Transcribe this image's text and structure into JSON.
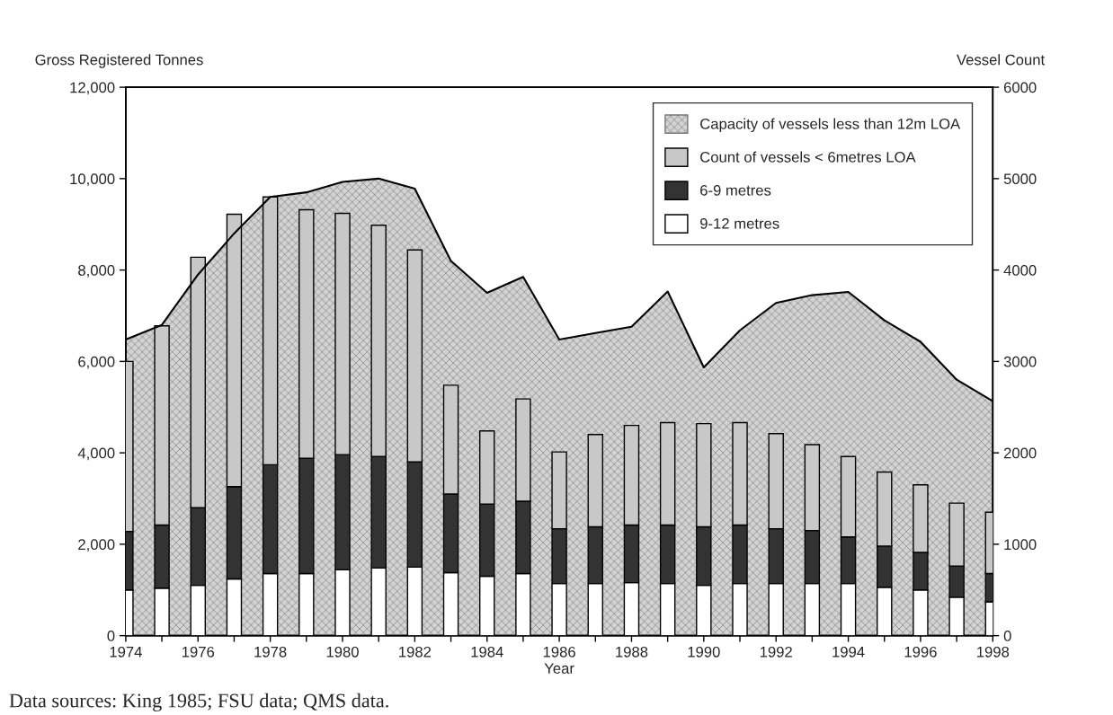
{
  "chart_data": {
    "type": "bar",
    "ylabel": "Gross Registered Tonnes",
    "y2label": "Vessel Count",
    "xlabel": "Year",
    "x": [
      1974,
      1975,
      1976,
      1977,
      1978,
      1979,
      1980,
      1981,
      1982,
      1983,
      1984,
      1985,
      1986,
      1987,
      1988,
      1989,
      1990,
      1991,
      1992,
      1993,
      1994,
      1995,
      1996,
      1997,
      1998
    ],
    "series": [
      {
        "name": "Capacity of vessels less than 12m LOA",
        "type": "area",
        "axis": "y",
        "color": "#d4d4d4",
        "values": [
          6480,
          6800,
          7900,
          8800,
          9600,
          9700,
          9930,
          10000,
          9780,
          8200,
          7500,
          7850,
          6480,
          6620,
          6760,
          7530,
          5870,
          6680,
          7280,
          7450,
          7520,
          6900,
          6430,
          5600,
          5130
        ]
      },
      {
        "name": "9-12 metres",
        "axis": "y2",
        "color": "#ffffff",
        "values": [
          500,
          520,
          550,
          620,
          680,
          680,
          720,
          740,
          750,
          690,
          650,
          680,
          570,
          570,
          580,
          570,
          550,
          570,
          570,
          570,
          570,
          530,
          500,
          420,
          370
        ]
      },
      {
        "name": "6-9 metres",
        "axis": "y2",
        "color": "#333333",
        "values": [
          640,
          690,
          850,
          1010,
          1190,
          1260,
          1260,
          1220,
          1150,
          860,
          790,
          790,
          600,
          620,
          630,
          640,
          640,
          640,
          600,
          580,
          510,
          450,
          410,
          340,
          310
        ]
      },
      {
        "name": "Count of vessels < 6metres LOA",
        "axis": "y2",
        "color": "#c8c8c8",
        "values": [
          1860,
          2180,
          2740,
          2980,
          2930,
          2720,
          2640,
          2530,
          2320,
          1190,
          800,
          1120,
          840,
          1010,
          1090,
          1120,
          1130,
          1120,
          1040,
          940,
          880,
          810,
          740,
          690,
          670
        ]
      }
    ],
    "stacked": true,
    "xlim": [
      1974,
      1998
    ],
    "xticks": [
      1974,
      {
        "value": 1975,
        "label": null
      },
      1976,
      {
        "value": 1977,
        "label": null
      },
      1978,
      {
        "value": 1979,
        "label": null
      },
      1980,
      {
        "value": 1981,
        "label": null
      },
      1982,
      {
        "value": 1983,
        "label": null
      },
      1984,
      {
        "value": 1985,
        "label": null
      },
      1986,
      {
        "value": 1987,
        "label": null
      },
      1988,
      {
        "value": 1989,
        "label": null
      },
      1990,
      {
        "value": 1991,
        "label": null
      },
      1992,
      {
        "value": 1993,
        "label": null
      },
      1994,
      {
        "value": 1995,
        "label": null
      },
      1996,
      {
        "value": 1997,
        "label": null
      },
      1998
    ],
    "ylim": [
      0,
      12000
    ],
    "yticks": [
      0,
      {
        "value": 2000,
        "label": "2,000"
      },
      {
        "value": 4000,
        "label": "4,000"
      },
      {
        "value": 6000,
        "label": "6,000"
      },
      {
        "value": 8000,
        "label": "8,000"
      },
      {
        "value": 10000,
        "label": "10,000"
      },
      {
        "value": 12000,
        "label": "12,000"
      }
    ],
    "y2lim": [
      0,
      6000
    ],
    "y2ticks": [
      0,
      1000,
      2000,
      3000,
      4000,
      5000,
      6000
    ],
    "legend": "top right",
    "grid": false,
    "annotations": [
      "Data sources: King 1985; FSU data; QMS data."
    ]
  }
}
